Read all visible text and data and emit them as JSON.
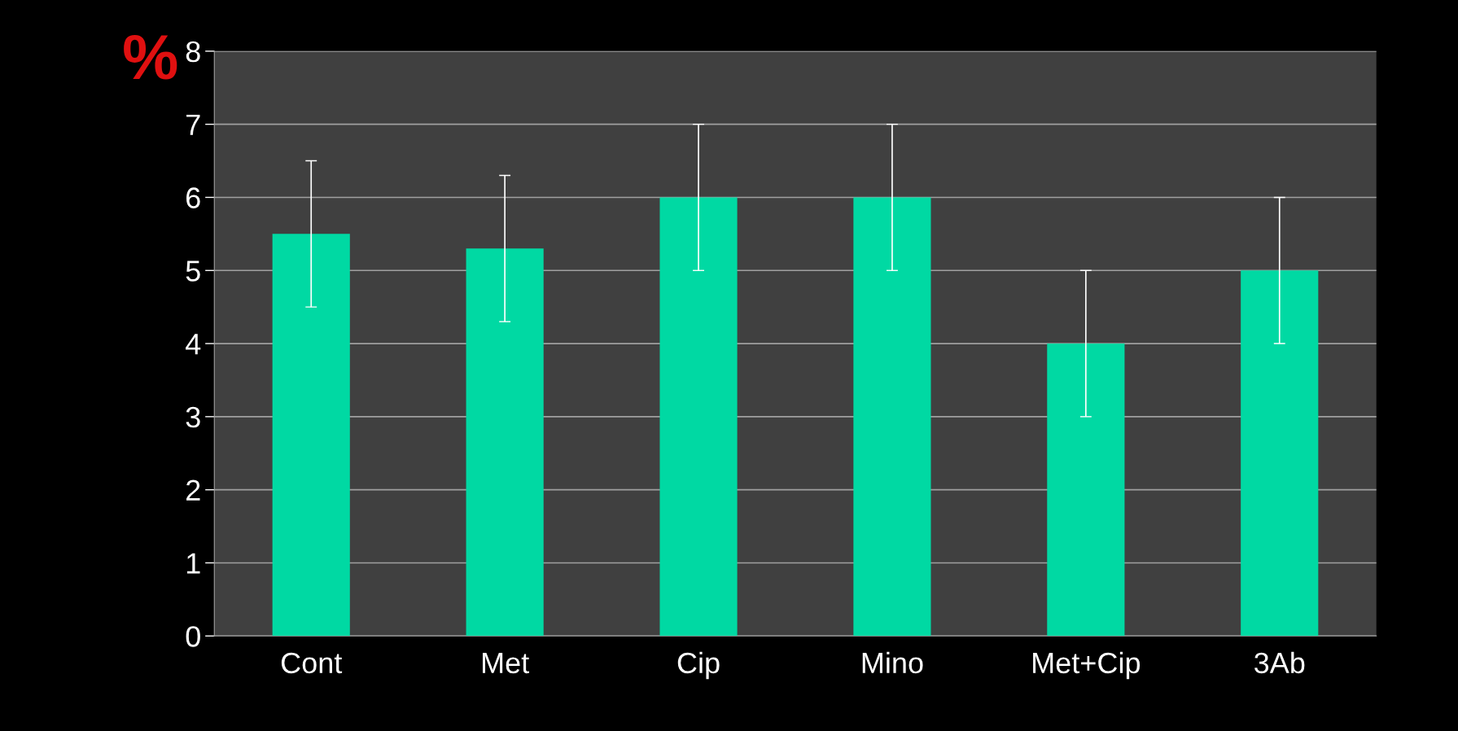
{
  "chart_data": {
    "type": "bar",
    "ylabel": "%",
    "categories": [
      "Cont",
      "Met",
      "Cip",
      "Mino",
      "Met+Cip",
      "3Ab"
    ],
    "values": [
      5.5,
      5.3,
      6,
      6,
      4,
      5
    ],
    "errors": [
      1,
      1,
      1,
      1,
      1,
      1
    ],
    "color": "#00d9a3",
    "ylim": [
      0,
      8
    ],
    "yticks": [
      0,
      1,
      2,
      3,
      4,
      5,
      6,
      7,
      8
    ],
    "grid": "y",
    "legend": false
  }
}
